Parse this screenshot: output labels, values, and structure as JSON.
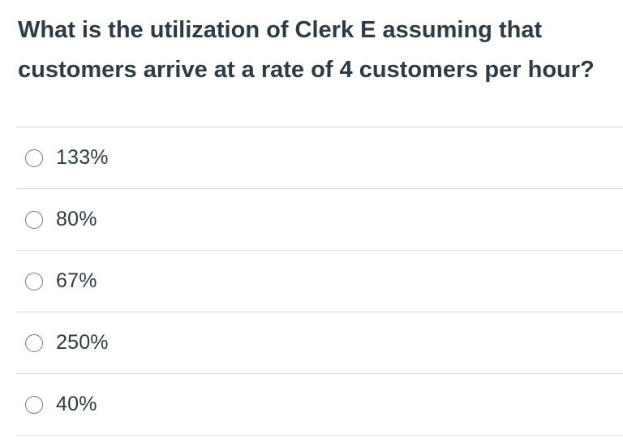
{
  "question": {
    "text": "What is the utilization of Clerk E assuming that customers arrive at a rate of 4 customers per hour?"
  },
  "answers": [
    {
      "label": "133%",
      "selected": false
    },
    {
      "label": "80%",
      "selected": false
    },
    {
      "label": "67%",
      "selected": false
    },
    {
      "label": "250%",
      "selected": false
    },
    {
      "label": "40%",
      "selected": false
    }
  ]
}
